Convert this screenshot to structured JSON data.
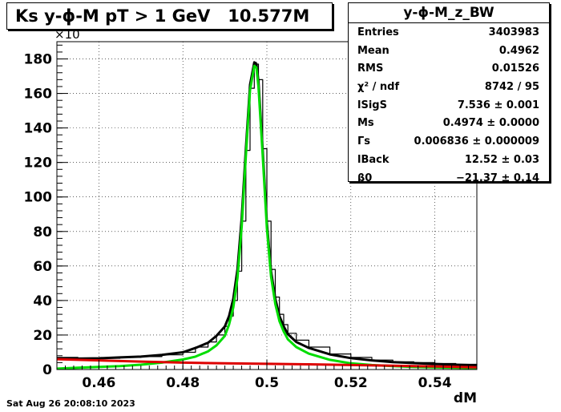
{
  "title": "Ks y-ϕ-M pT > 1 GeV   10.577M",
  "stats": {
    "name": "y-ϕ-M_z_BW",
    "rows": [
      {
        "key": "Entries",
        "value": "3403983"
      },
      {
        "key": "Mean",
        "value": "0.4962"
      },
      {
        "key": "RMS",
        "value": "0.01526"
      },
      {
        "key": "χ² / ndf",
        "value": "8742 / 95"
      },
      {
        "key": "lSigS",
        "value": "7.536 ± 0.001"
      },
      {
        "key": "Ms",
        "value": "0.4974 ± 0.0000"
      },
      {
        "key": "Γs",
        "value": "0.006836 ± 0.000009"
      },
      {
        "key": "lBack",
        "value": "12.52 ± 0.03"
      },
      {
        "key": "β0",
        "value": "−21.37 ± 0.14"
      }
    ]
  },
  "footer": "Sat Aug 26 20:08:10 2023",
  "chart_data": {
    "type": "line",
    "xlabel": "dM",
    "ylabel": "",
    "y_multiplier_label": "×10",
    "xlim": [
      0.45,
      0.55
    ],
    "ylim": [
      0,
      190
    ],
    "xticks": [
      0.46,
      0.48,
      0.5,
      0.52,
      0.54
    ],
    "xtick_labels": [
      "0.46",
      "0.48",
      "0.5",
      "0.52",
      "0.54"
    ],
    "yticks": [
      0,
      20,
      40,
      60,
      80,
      100,
      120,
      140,
      160,
      180
    ],
    "ytick_labels": [
      "0",
      "20",
      "40",
      "60",
      "80",
      "100",
      "120",
      "140",
      "160",
      "180"
    ],
    "grid": true,
    "series": [
      {
        "name": "data histogram",
        "color": "#000000",
        "style": "step",
        "x": [
          0.45,
          0.455,
          0.46,
          0.465,
          0.47,
          0.475,
          0.48,
          0.483,
          0.486,
          0.488,
          0.49,
          0.491,
          0.492,
          0.493,
          0.494,
          0.495,
          0.496,
          0.497,
          0.4975,
          0.498,
          0.499,
          0.5,
          0.501,
          0.502,
          0.503,
          0.504,
          0.505,
          0.507,
          0.51,
          0.515,
          0.52,
          0.525,
          0.53,
          0.535,
          0.54,
          0.545,
          0.55
        ],
        "y": [
          7,
          6.5,
          6.5,
          7,
          7.5,
          8.5,
          10,
          13,
          16,
          20,
          25,
          31,
          40,
          57,
          86,
          127,
          163,
          178,
          177,
          168,
          128,
          86,
          58,
          42,
          32,
          26,
          21,
          17,
          13,
          9,
          7,
          5.5,
          4.5,
          4,
          3.5,
          3,
          2.5
        ]
      },
      {
        "name": "total fit",
        "color": "#000000",
        "style": "line",
        "x": [
          0.45,
          0.455,
          0.46,
          0.465,
          0.47,
          0.475,
          0.48,
          0.483,
          0.486,
          0.488,
          0.49,
          0.491,
          0.492,
          0.493,
          0.494,
          0.495,
          0.496,
          0.497,
          0.4975,
          0.498,
          0.499,
          0.5,
          0.501,
          0.502,
          0.503,
          0.504,
          0.505,
          0.507,
          0.51,
          0.515,
          0.52,
          0.525,
          0.53,
          0.535,
          0.54,
          0.545,
          0.55
        ],
        "y": [
          6.5,
          6.3,
          6.5,
          7,
          7.5,
          8.5,
          10,
          12.5,
          15.5,
          19.5,
          25,
          31,
          41,
          58,
          88,
          128,
          165,
          178,
          177,
          167,
          127,
          85,
          57,
          41,
          31,
          25,
          20.5,
          16,
          12.5,
          8.8,
          6.6,
          5.3,
          4.3,
          3.7,
          3.2,
          2.8,
          2.4
        ]
      },
      {
        "name": "signal (Breit-Wigner)",
        "color": "#00dd00",
        "style": "line",
        "x": [
          0.45,
          0.455,
          0.46,
          0.465,
          0.47,
          0.475,
          0.48,
          0.483,
          0.486,
          0.488,
          0.49,
          0.491,
          0.492,
          0.493,
          0.494,
          0.495,
          0.496,
          0.497,
          0.4975,
          0.498,
          0.499,
          0.5,
          0.501,
          0.502,
          0.503,
          0.504,
          0.505,
          0.507,
          0.51,
          0.515,
          0.52,
          0.525,
          0.53,
          0.535,
          0.54,
          0.545,
          0.55
        ],
        "y": [
          0.5,
          1,
          1.5,
          2,
          2.8,
          4,
          5.8,
          7.5,
          10.5,
          14,
          19.5,
          26,
          36,
          53,
          83,
          124,
          162,
          176,
          175,
          164,
          124,
          82,
          54,
          38,
          28,
          22,
          17.5,
          13,
          9.2,
          5.6,
          3.6,
          2.6,
          2,
          1.5,
          1.2,
          1,
          0.8
        ]
      },
      {
        "name": "background",
        "color": "#dd0000",
        "style": "line",
        "x": [
          0.45,
          0.46,
          0.47,
          0.48,
          0.49,
          0.5,
          0.51,
          0.52,
          0.53,
          0.54,
          0.55
        ],
        "y": [
          6,
          5.3,
          4.6,
          4,
          3.6,
          3.3,
          3,
          2.6,
          2.2,
          1.8,
          1.3
        ]
      }
    ]
  }
}
